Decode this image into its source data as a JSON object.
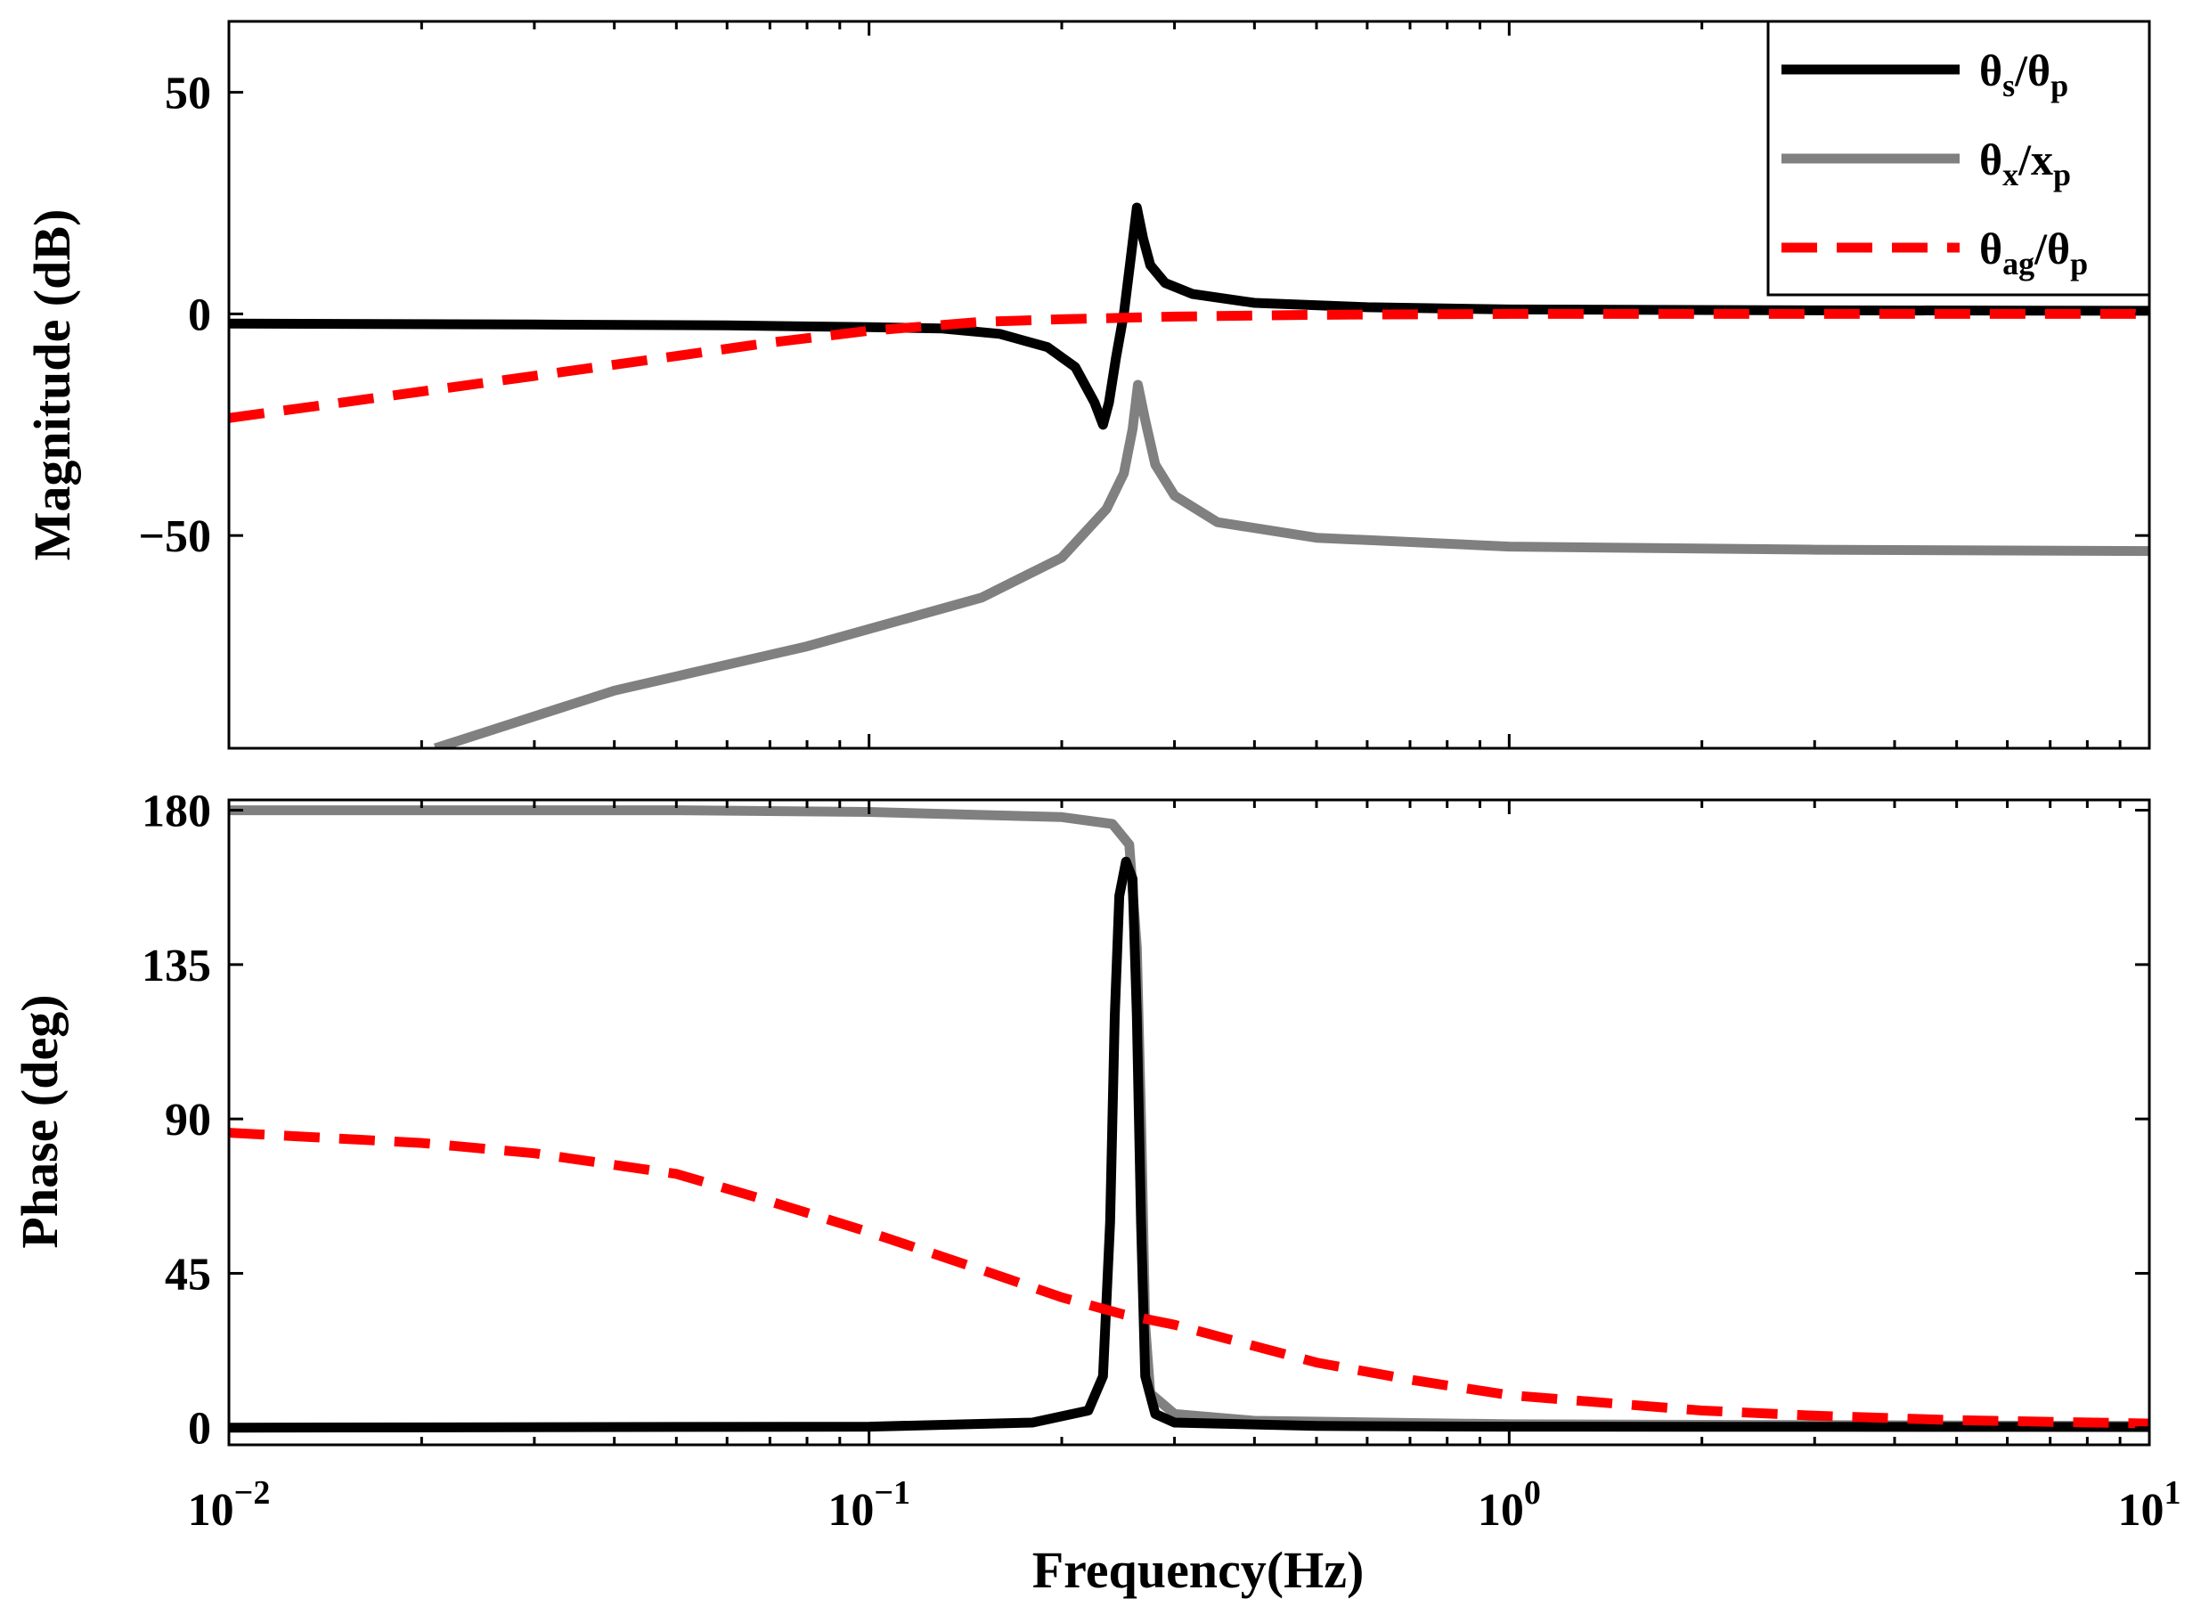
{
  "chart_data": [
    {
      "type": "line",
      "subplot": "magnitude",
      "xscale": "log",
      "xlim": [
        0.01,
        10
      ],
      "ylim": [
        -98,
        66
      ],
      "ylabel": "Magnitude (dB)",
      "yticks": [
        50,
        0,
        -50
      ],
      "ytick_labels": [
        "50",
        "0",
        "−50"
      ],
      "grid": false,
      "legend_position": "top-right",
      "series": [
        {
          "name": "θs/θp",
          "color": "#000000",
          "dash": "solid",
          "points": [
            [
              0.01,
              -2.2
            ],
            [
              0.03,
              -2.4
            ],
            [
              0.06,
              -2.6
            ],
            [
              0.1,
              -3.0
            ],
            [
              0.13,
              -3.3
            ],
            [
              0.16,
              -4.5
            ],
            [
              0.19,
              -7.5
            ],
            [
              0.21,
              -12
            ],
            [
              0.225,
              -20
            ],
            [
              0.232,
              -25
            ],
            [
              0.237,
              -20
            ],
            [
              0.243,
              -10
            ],
            [
              0.25,
              0
            ],
            [
              0.256,
              12
            ],
            [
              0.262,
              24
            ],
            [
              0.268,
              17
            ],
            [
              0.275,
              11
            ],
            [
              0.29,
              7
            ],
            [
              0.32,
              4.5
            ],
            [
              0.4,
              2.5
            ],
            [
              0.6,
              1.5
            ],
            [
              1,
              1
            ],
            [
              3,
              0.8
            ],
            [
              10,
              0.7
            ]
          ]
        },
        {
          "name": "θx/xp",
          "color": "#808080",
          "dash": "solid",
          "points": [
            [
              0.021,
              -98
            ],
            [
              0.04,
              -85
            ],
            [
              0.08,
              -75
            ],
            [
              0.15,
              -64
            ],
            [
              0.2,
              -55
            ],
            [
              0.235,
              -44
            ],
            [
              0.25,
              -36
            ],
            [
              0.258,
              -26
            ],
            [
              0.263,
              -16
            ],
            [
              0.27,
              -24
            ],
            [
              0.28,
              -34
            ],
            [
              0.3,
              -41
            ],
            [
              0.35,
              -47
            ],
            [
              0.5,
              -50.5
            ],
            [
              1,
              -52.5
            ],
            [
              3,
              -53.2
            ],
            [
              10,
              -53.5
            ]
          ]
        },
        {
          "name": "θag/θp",
          "color": "#ff0000",
          "dash": "dashed",
          "points": [
            [
              0.01,
              -23.5
            ],
            [
              0.015,
              -20
            ],
            [
              0.02,
              -17.5
            ],
            [
              0.03,
              -14
            ],
            [
              0.05,
              -9.5
            ],
            [
              0.07,
              -6.5
            ],
            [
              0.1,
              -3.8
            ],
            [
              0.15,
              -1.8
            ],
            [
              0.2,
              -1.2
            ],
            [
              0.3,
              -0.6
            ],
            [
              0.5,
              -0.2
            ],
            [
              1,
              0
            ],
            [
              10,
              0
            ]
          ]
        }
      ]
    },
    {
      "type": "line",
      "subplot": "phase",
      "xscale": "log",
      "xlim": [
        0.01,
        10
      ],
      "ylim": [
        -5,
        183
      ],
      "xlabel": "Frequency(Hz)",
      "ylabel": "Phase (deg)",
      "xticks": [
        0.01,
        0.1,
        1,
        10
      ],
      "xtick_labels": [
        {
          "base": "10",
          "exp": "−2"
        },
        {
          "base": "10",
          "exp": "−1"
        },
        {
          "base": "10",
          "exp": "0"
        },
        {
          "base": "10",
          "exp": "1"
        }
      ],
      "yticks": [
        180,
        135,
        90,
        45,
        0
      ],
      "ytick_labels": [
        "180",
        "135",
        "90",
        "45",
        "0"
      ],
      "grid": false,
      "series": [
        {
          "name": "θs/θp",
          "color": "#000000",
          "dash": "solid",
          "points": [
            [
              0.01,
              0
            ],
            [
              0.1,
              0.3
            ],
            [
              0.18,
              1.5
            ],
            [
              0.22,
              5
            ],
            [
              0.232,
              15
            ],
            [
              0.238,
              60
            ],
            [
              0.242,
              120
            ],
            [
              0.246,
              155
            ],
            [
              0.252,
              165
            ],
            [
              0.258,
              160
            ],
            [
              0.262,
              120
            ],
            [
              0.266,
              60
            ],
            [
              0.27,
              15
            ],
            [
              0.28,
              4
            ],
            [
              0.3,
              1.5
            ],
            [
              0.5,
              0.5
            ],
            [
              1,
              0.3
            ],
            [
              10,
              0.2
            ]
          ]
        },
        {
          "name": "θx/xp",
          "color": "#808080",
          "dash": "solid",
          "points": [
            [
              0.01,
              180
            ],
            [
              0.05,
              180
            ],
            [
              0.1,
              179.5
            ],
            [
              0.2,
              178
            ],
            [
              0.24,
              176
            ],
            [
              0.255,
              170
            ],
            [
              0.262,
              140
            ],
            [
              0.266,
              90
            ],
            [
              0.27,
              30
            ],
            [
              0.275,
              10
            ],
            [
              0.3,
              4
            ],
            [
              0.4,
              2
            ],
            [
              1,
              1
            ],
            [
              10,
              0.5
            ]
          ]
        },
        {
          "name": "θag/θp",
          "color": "#ff0000",
          "dash": "dashed",
          "points": [
            [
              0.01,
              86
            ],
            [
              0.02,
              83
            ],
            [
              0.03,
              80
            ],
            [
              0.05,
              74
            ],
            [
              0.07,
              66
            ],
            [
              0.1,
              57
            ],
            [
              0.15,
              46
            ],
            [
              0.2,
              38
            ],
            [
              0.25,
              33
            ],
            [
              0.3,
              30
            ],
            [
              0.5,
              19
            ],
            [
              0.7,
              14
            ],
            [
              1,
              9.5
            ],
            [
              2,
              5
            ],
            [
              3,
              3.5
            ],
            [
              5,
              2.2
            ],
            [
              10,
              1.2
            ]
          ]
        }
      ]
    }
  ]
}
